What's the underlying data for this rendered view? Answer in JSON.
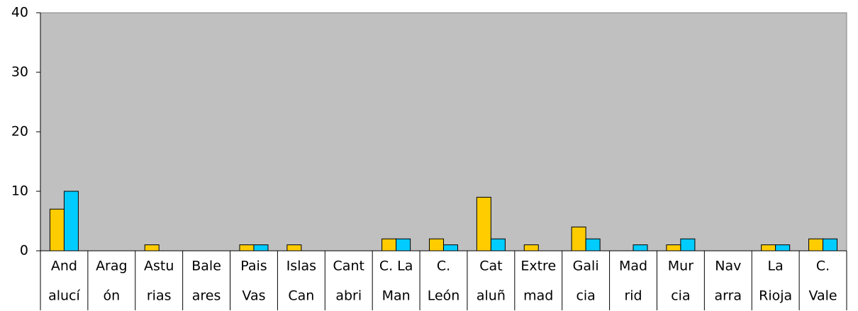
{
  "chart_data": {
    "type": "bar",
    "categories": [
      [
        "And",
        "alucí"
      ],
      [
        "Arag",
        "ón"
      ],
      [
        "Astu",
        "rias"
      ],
      [
        "Bale",
        "ares"
      ],
      [
        "Pais",
        "Vas"
      ],
      [
        "Islas",
        "Can"
      ],
      [
        "Cant",
        "abri"
      ],
      [
        "C. La",
        "Man"
      ],
      [
        "C.",
        "León"
      ],
      [
        "Cat",
        "aluñ"
      ],
      [
        "Extre",
        "mad"
      ],
      [
        "Gali",
        "cia"
      ],
      [
        "Mad",
        "rid"
      ],
      [
        "Mur",
        "cia"
      ],
      [
        "Nav",
        "arra"
      ],
      [
        "La",
        "Rioja"
      ],
      [
        "C.",
        "Vale"
      ]
    ],
    "series": [
      {
        "color": "#ffcc00",
        "values": [
          7,
          0,
          1,
          0,
          1,
          1,
          0,
          2,
          2,
          9,
          1,
          4,
          0,
          1,
          0,
          1,
          2
        ]
      },
      {
        "color": "#00ccff",
        "values": [
          10,
          0,
          0,
          0,
          1,
          0,
          0,
          2,
          1,
          2,
          0,
          2,
          1,
          2,
          0,
          1,
          2
        ]
      }
    ],
    "ylim": [
      0,
      40
    ],
    "yticks": [
      0,
      10,
      20,
      30,
      40
    ],
    "plot_background": "#c0c0c0"
  }
}
